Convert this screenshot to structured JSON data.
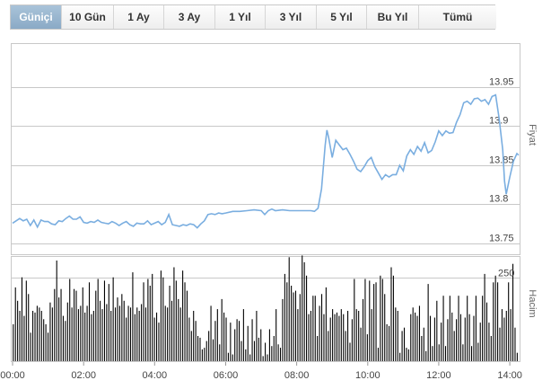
{
  "tabs": [
    {
      "label": "Güniçi",
      "active": true
    },
    {
      "label": "10 Gün",
      "active": false
    },
    {
      "label": "1 Ay",
      "active": false
    },
    {
      "label": "3 Ay",
      "active": false
    },
    {
      "label": "1 Yıl",
      "active": false
    },
    {
      "label": "3 Yıl",
      "active": false
    },
    {
      "label": "5 Yıl",
      "active": false
    },
    {
      "label": "Bu Yıl",
      "active": false
    },
    {
      "label": "Tümü",
      "active": false
    }
  ],
  "colors": {
    "line": "#7aaee0",
    "bar": "#000000",
    "grid": "#c8c8c8",
    "active_tab": "#98b6d0"
  },
  "chart_data": [
    {
      "type": "line",
      "ylabel": "Fiyat",
      "ylim": [
        13.75,
        13.95
      ],
      "yticks": [
        13.95,
        13.9,
        13.85,
        13.8,
        13.75
      ],
      "xlim": [
        0,
        14.25
      ],
      "xticks": [
        "00:00",
        "02:00",
        "04:00",
        "06:00",
        "08:00",
        "10:00",
        "12:00",
        "14:00"
      ],
      "series": [
        {
          "x": [
            0.0,
            0.1,
            0.2,
            0.3,
            0.4,
            0.5,
            0.6,
            0.7,
            0.8,
            0.9,
            1.0,
            1.1,
            1.2,
            1.3,
            1.4,
            1.5,
            1.6,
            1.7,
            1.8,
            1.9,
            2.0,
            2.1,
            2.2,
            2.3,
            2.4,
            2.5,
            2.6,
            2.7,
            2.8,
            2.9,
            3.0,
            3.1,
            3.2,
            3.3,
            3.4,
            3.5,
            3.6,
            3.7,
            3.8,
            3.9,
            4.0,
            4.1,
            4.2,
            4.3,
            4.4,
            4.5,
            4.6,
            4.7,
            4.8,
            4.9,
            5.0,
            5.1,
            5.2,
            5.3,
            5.4,
            5.5,
            5.6,
            5.7,
            5.8,
            5.9,
            6.0,
            6.2,
            6.4,
            6.6,
            6.8,
            7.0,
            7.1,
            7.2,
            7.3,
            7.4,
            7.6,
            7.8,
            8.0,
            8.2,
            8.4,
            8.5,
            8.6,
            8.7,
            8.8,
            8.85,
            8.9,
            9.0,
            9.1,
            9.2,
            9.3,
            9.4,
            9.5,
            9.6,
            9.7,
            9.8,
            9.9,
            10.0,
            10.1,
            10.2,
            10.3,
            10.4,
            10.5,
            10.6,
            10.7,
            10.8,
            10.9,
            11.0,
            11.1,
            11.2,
            11.3,
            11.4,
            11.5,
            11.6,
            11.7,
            11.8,
            11.9,
            12.0,
            12.1,
            12.2,
            12.3,
            12.4,
            12.5,
            12.6,
            12.7,
            12.8,
            12.9,
            13.0,
            13.1,
            13.2,
            13.3,
            13.4,
            13.5,
            13.6,
            13.7,
            13.8,
            13.85,
            13.9,
            14.0,
            14.1,
            14.2,
            14.25
          ],
          "y": [
            13.776,
            13.779,
            13.782,
            13.779,
            13.781,
            13.773,
            13.78,
            13.771,
            13.78,
            13.778,
            13.778,
            13.775,
            13.774,
            13.779,
            13.778,
            13.782,
            13.785,
            13.781,
            13.781,
            13.784,
            13.777,
            13.776,
            13.778,
            13.777,
            13.78,
            13.777,
            13.776,
            13.775,
            13.778,
            13.776,
            13.773,
            13.776,
            13.778,
            13.774,
            13.772,
            13.776,
            13.775,
            13.775,
            13.779,
            13.774,
            13.776,
            13.778,
            13.774,
            13.777,
            13.787,
            13.774,
            13.773,
            13.772,
            13.774,
            13.773,
            13.775,
            13.774,
            13.77,
            13.775,
            13.779,
            13.787,
            13.788,
            13.787,
            13.789,
            13.788,
            13.789,
            13.791,
            13.791,
            13.792,
            13.793,
            13.792,
            13.787,
            13.792,
            13.794,
            13.792,
            13.793,
            13.792,
            13.792,
            13.792,
            13.792,
            13.791,
            13.795,
            13.82,
            13.875,
            13.895,
            13.885,
            13.86,
            13.882,
            13.876,
            13.87,
            13.872,
            13.864,
            13.855,
            13.845,
            13.842,
            13.848,
            13.856,
            13.86,
            13.848,
            13.84,
            13.832,
            13.838,
            13.835,
            13.838,
            13.838,
            13.85,
            13.843,
            13.862,
            13.87,
            13.864,
            13.874,
            13.868,
            13.879,
            13.866,
            13.869,
            13.88,
            13.894,
            13.888,
            13.894,
            13.891,
            13.892,
            13.905,
            13.915,
            13.93,
            13.932,
            13.928,
            13.935,
            13.936,
            13.932,
            13.934,
            13.928,
            13.938,
            13.94,
            13.91,
            13.87,
            13.83,
            13.813,
            13.835,
            13.855,
            13.865,
            13.863
          ]
        }
      ]
    },
    {
      "type": "bar",
      "ylabel": "Hacim",
      "ylim": [
        0,
        300
      ],
      "yticks": [
        250
      ],
      "xlim": [
        0,
        14.25
      ],
      "values": [
        110,
        220,
        180,
        150,
        250,
        135,
        240,
        200,
        85,
        150,
        145,
        165,
        160,
        150,
        125,
        110,
        85,
        175,
        160,
        215,
        300,
        190,
        215,
        135,
        120,
        175,
        245,
        160,
        215,
        210,
        155,
        165,
        220,
        145,
        165,
        235,
        140,
        150,
        210,
        245,
        180,
        155,
        240,
        170,
        230,
        150,
        250,
        160,
        190,
        165,
        200,
        180,
        130,
        165,
        160,
        265,
        140,
        160,
        150,
        170,
        235,
        160,
        245,
        225,
        260,
        130,
        145,
        115,
        270,
        250,
        165,
        160,
        225,
        180,
        280,
        240,
        185,
        160,
        270,
        235,
        210,
        130,
        90,
        150,
        120,
        75,
        70,
        35,
        40,
        60,
        90,
        165,
        65,
        120,
        155,
        50,
        185,
        145,
        130,
        25,
        115,
        20,
        95,
        125,
        120,
        60,
        155,
        35,
        105,
        20,
        125,
        60,
        150,
        70,
        95,
        15,
        55,
        20,
        95,
        45,
        75,
        155,
        50,
        40,
        185,
        260,
        235,
        310,
        225,
        205,
        210,
        155,
        200,
        315,
        295,
        255,
        140,
        150,
        195,
        195,
        75,
        165,
        200,
        140,
        220,
        90,
        130,
        155,
        140,
        145,
        135,
        155,
        140,
        90,
        150,
        55,
        125,
        245,
        155,
        150,
        100,
        185,
        245,
        80,
        240,
        155,
        230,
        235,
        40,
        255,
        245,
        200,
        110,
        105,
        280,
        255,
        160,
        150,
        25,
        90,
        100,
        40,
        35,
        140,
        160,
        145,
        135,
        165,
        75,
        100,
        30,
        230,
        135,
        45,
        130,
        180,
        50,
        115,
        195,
        45,
        125,
        195,
        145,
        90,
        125,
        195,
        140,
        50,
        130,
        195,
        140,
        45,
        135,
        195,
        55,
        115,
        195,
        260,
        175,
        115,
        75,
        235,
        255,
        235,
        100,
        155,
        130,
        150,
        235,
        155,
        290,
        100,
        25
      ]
    }
  ]
}
